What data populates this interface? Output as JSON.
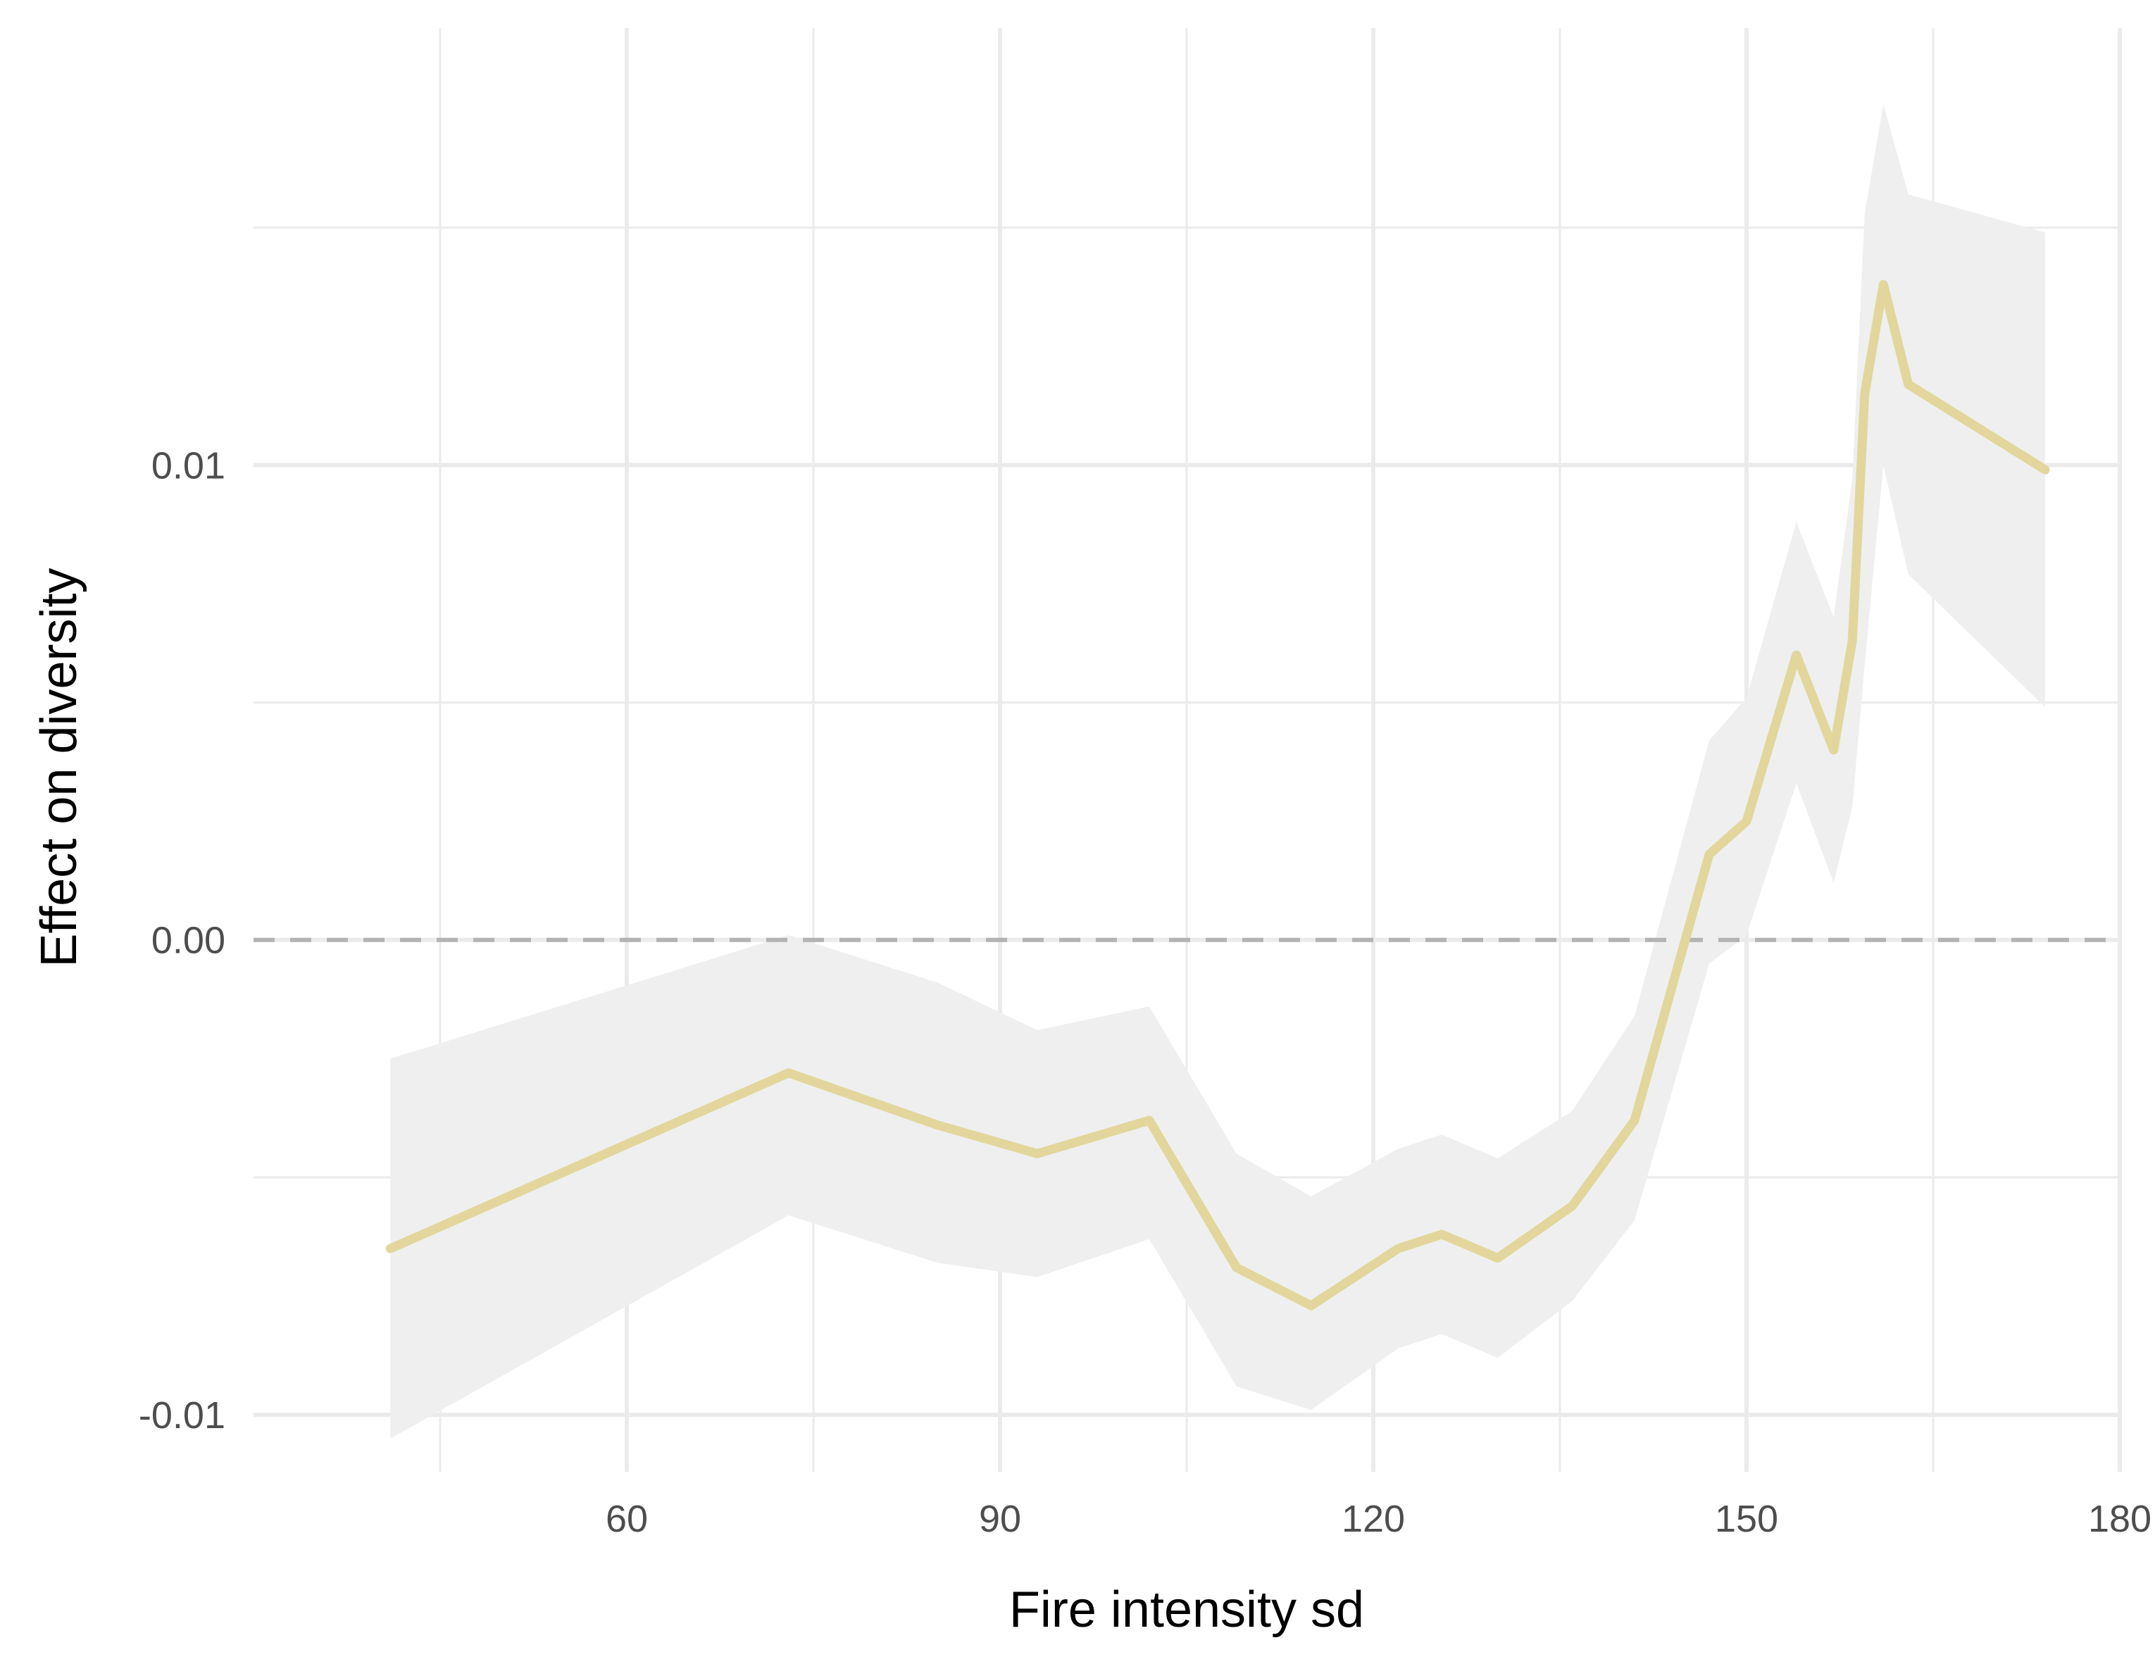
{
  "chart_data": {
    "type": "line",
    "xlabel": "Fire intensity sd",
    "ylabel": "Effect on diversity",
    "xlim": [
      30,
      180
    ],
    "ylim": [
      -0.0112,
      0.0192
    ],
    "x_ticks": [
      60,
      90,
      120,
      150,
      180
    ],
    "y_ticks": [
      -0.01,
      0.0,
      0.01
    ],
    "y_tick_labels": [
      "-0.01",
      "0.00",
      "0.01"
    ],
    "grid": true,
    "legend": "none",
    "reference_line": {
      "y": 0,
      "style": "dashed",
      "color": "#b3b3b3"
    },
    "series": [
      {
        "color": "#e2d69c",
        "band_color": "#efefef",
        "x": [
          41,
          73,
          85,
          93,
          102,
          109,
          115,
          122,
          125.5,
          130,
          136,
          141,
          147,
          150,
          154,
          157,
          158.5,
          159.5,
          161,
          163,
          174
        ],
        "y": [
          -0.0065,
          -0.0028,
          -0.0039,
          -0.0045,
          -0.0038,
          -0.0069,
          -0.0077,
          -0.0065,
          -0.0062,
          -0.0067,
          -0.0056,
          -0.0038,
          0.0018,
          0.0025,
          0.006,
          0.004,
          0.0063,
          0.0115,
          0.0138,
          0.0117,
          0.0099
        ],
        "lower": [
          -0.0105,
          -0.0058,
          -0.0068,
          -0.0071,
          -0.0063,
          -0.0094,
          -0.0099,
          -0.0086,
          -0.0083,
          -0.0088,
          -0.0076,
          -0.0059,
          -0.0005,
          0.0001,
          0.0033,
          0.0012,
          0.0028,
          0.0058,
          0.01,
          0.0077,
          0.0049
        ],
        "upper": [
          -0.0025,
          0.0001,
          -0.0009,
          -0.0019,
          -0.0014,
          -0.0045,
          -0.0054,
          -0.0044,
          -0.0041,
          -0.0046,
          -0.0036,
          -0.0016,
          0.0042,
          0.0051,
          0.0088,
          0.0068,
          0.0097,
          0.0153,
          0.0176,
          0.0157,
          0.0149
        ]
      }
    ]
  }
}
